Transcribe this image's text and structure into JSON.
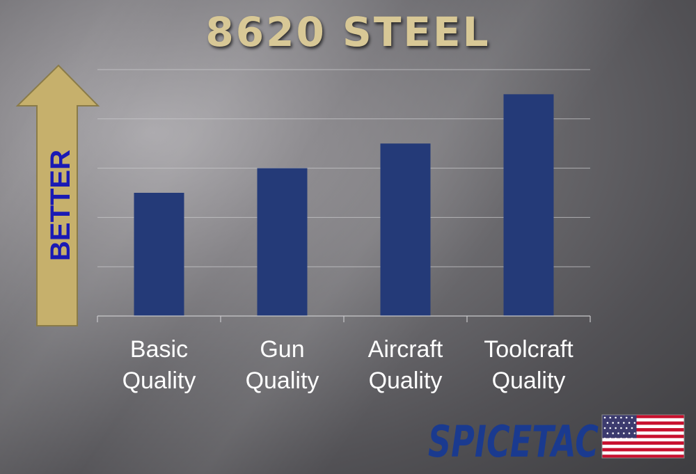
{
  "chart_data": {
    "type": "bar",
    "title": "8620 STEEL",
    "categories": [
      "Basic\nQuality",
      "Gun\nQuality",
      "Aircraft\nQuality",
      "Toolcraft\nQuality"
    ],
    "values": [
      2.5,
      3.0,
      3.5,
      4.5
    ],
    "ylim": [
      0,
      5
    ],
    "y_gridlines": [
      1,
      2,
      3,
      4,
      5
    ],
    "grid": true,
    "bar_color": "#243a78",
    "gridline_color": "#c9c9cc",
    "ylabel": "BETTER",
    "ylabel_arrow_color": "#c6b06c",
    "ylabel_text_color": "#1a1ab4"
  },
  "logo": {
    "text": "SPICETAC",
    "text_color": "#1a3a8f",
    "flag_icon": "us-flag-icon",
    "flag_colors": {
      "red": "#c8102e",
      "white": "#ffffff",
      "blue": "#3c3b6e"
    }
  }
}
